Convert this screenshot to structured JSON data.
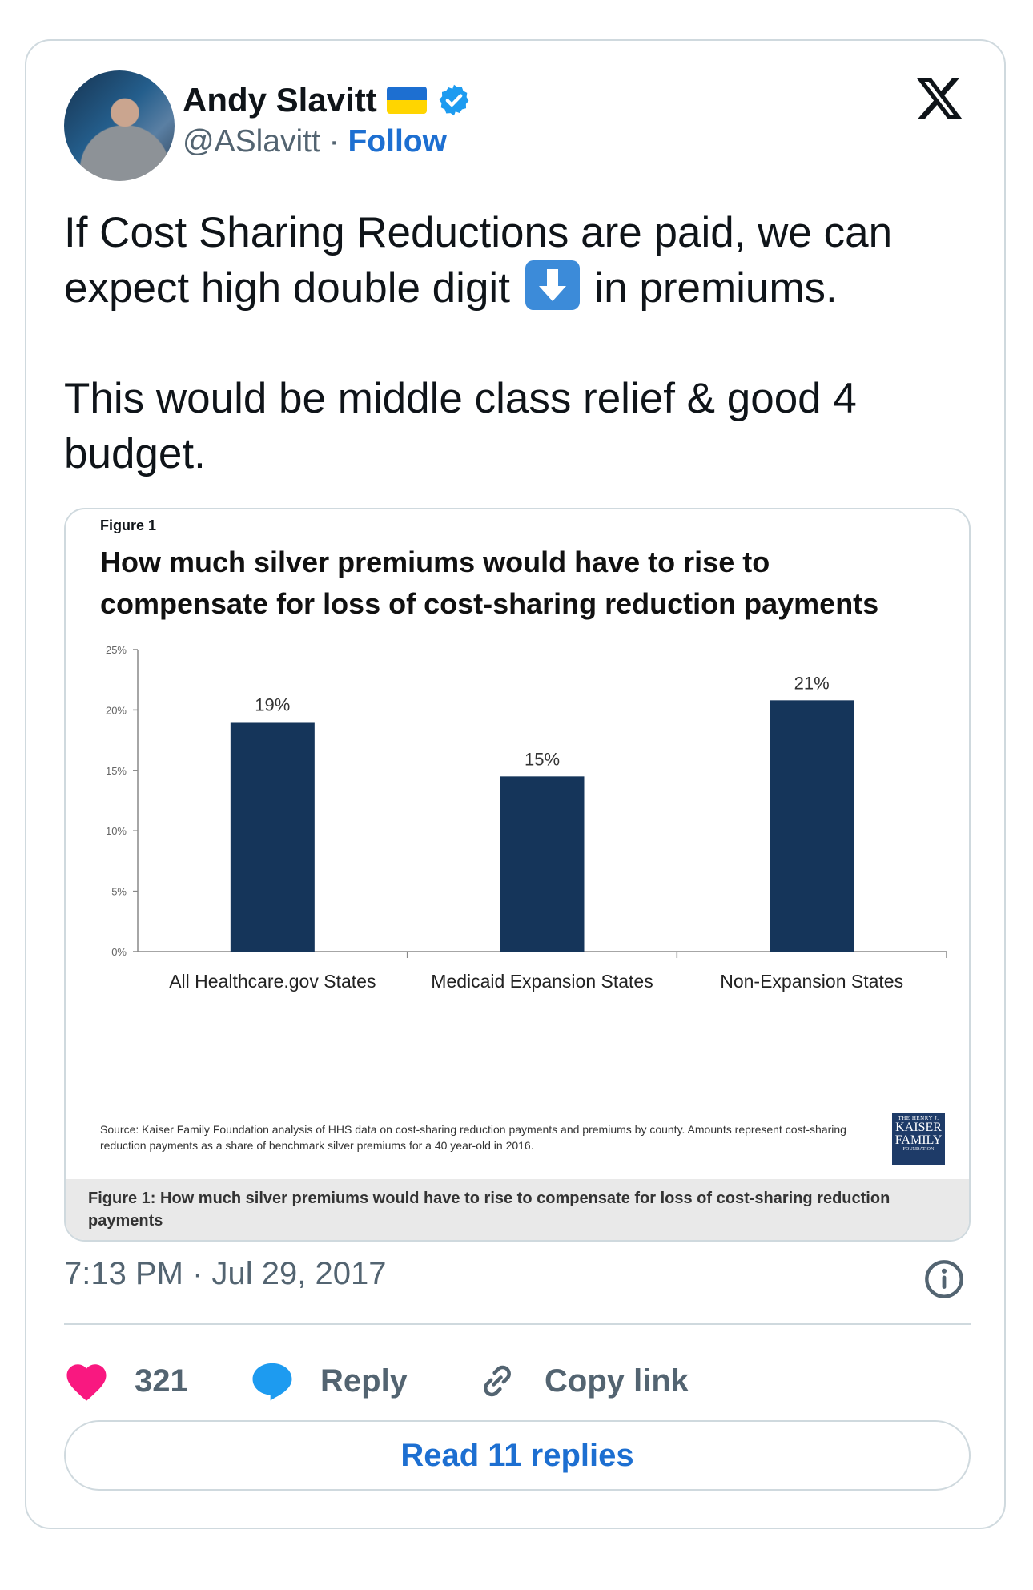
{
  "author": {
    "name": "Andy Slavitt",
    "flag_icon": "ukraine-flag-icon",
    "verified_icon": "verified-badge-icon",
    "handle": "@ASlavitt",
    "separator": " · ",
    "follow_label": "Follow"
  },
  "tweet": {
    "line1": "If Cost Sharing Reductions are paid, we can",
    "line2_before": "expect high double digit ",
    "line2_after": " in premiums.",
    "emoji_icon": "down-arrow-emoji-icon",
    "paragraph2": "This would be middle class relief & good 4\nbudget."
  },
  "media": {
    "figure_label": "Figure 1",
    "title": "How much silver premiums would have to rise to compensate for loss of cost-sharing reduction payments",
    "source": "Source: Kaiser Family Foundation analysis of HHS data on cost-sharing reduction payments and premiums by county. Amounts represent cost-sharing reduction payments as a share of benchmark silver premiums for a 40 year-old in 2016.",
    "logo": {
      "line1": "THE HENRY J.",
      "line2": "KAISER",
      "line3": "FAMILY",
      "line4": "FOUNDATION"
    },
    "caption": "Figure 1: How much silver premiums would have to rise to compensate for loss of cost-sharing reduction payments"
  },
  "chart_data": {
    "type": "bar",
    "title": "How much silver premiums would have to rise to compensate for loss of cost-sharing reduction payments",
    "categories": [
      "All Healthcare.gov States",
      "Medicaid Expansion States",
      "Non-Expansion States"
    ],
    "values": [
      19,
      14.5,
      20.8
    ],
    "value_labels": [
      "19%",
      "15%",
      "21%"
    ],
    "yticks": [
      "0%",
      "5%",
      "10%",
      "15%",
      "20%",
      "25%"
    ],
    "ylim": [
      0,
      25
    ],
    "xlabel": "",
    "ylabel": "",
    "grid": false,
    "bar_color": "#15355a"
  },
  "meta": {
    "timestamp": "7:13 PM · Jul 29, 2017",
    "info_icon": "info-icon"
  },
  "actions": {
    "like_count": "321",
    "reply_label": "Reply",
    "copy_label": "Copy link"
  },
  "read_replies_label": "Read 11 replies",
  "colors": {
    "accent": "#1d6fd1",
    "like": "#f91880",
    "reply": "#1d9bf0",
    "muted": "#536471"
  }
}
